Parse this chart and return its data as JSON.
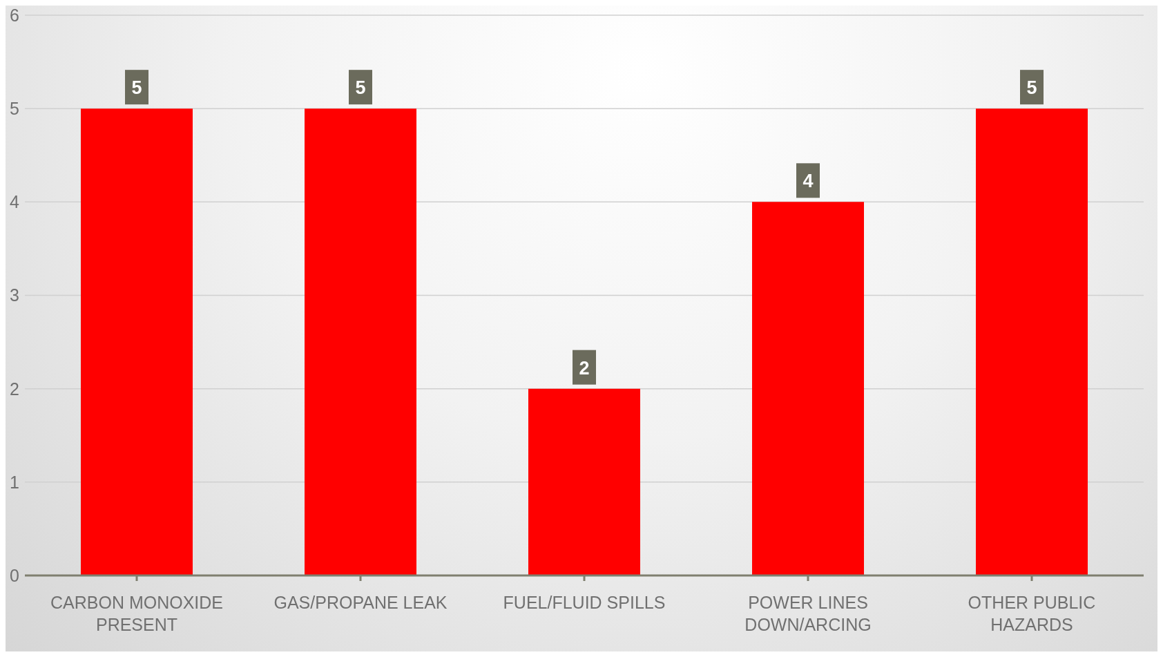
{
  "chart_data": {
    "type": "bar",
    "categories": [
      "CARBON MONOXIDE PRESENT",
      "GAS/PROPANE LEAK",
      "FUEL/FLUID SPILLS",
      "POWER LINES DOWN/ARCING",
      "OTHER PUBLIC HAZARDS"
    ],
    "values": [
      5,
      5,
      2,
      4,
      5
    ],
    "color": "#ff0000",
    "ylim": [
      0,
      6
    ],
    "yticks": [
      0,
      1,
      2,
      3,
      4,
      5,
      6
    ],
    "grid": "y",
    "data_labels": true
  }
}
